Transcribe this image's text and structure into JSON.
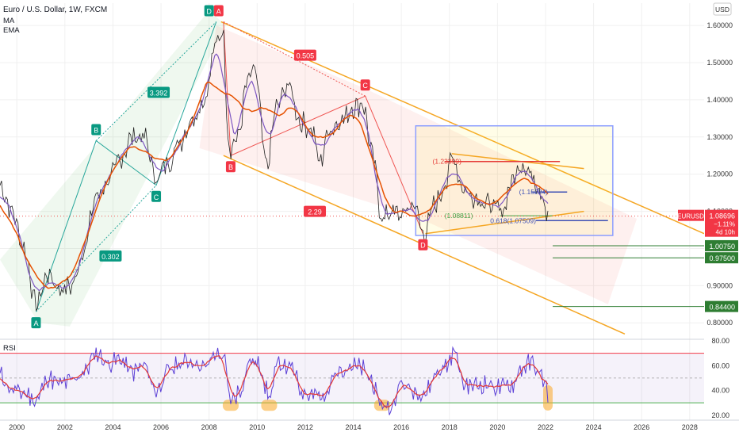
{
  "header": {
    "symbol_title": "Euro / U.S. Dollar, 1W, FXCM",
    "indicators": [
      "MA",
      "EMA"
    ],
    "currency_button": "USD"
  },
  "colors": {
    "price_line": "#212121",
    "ma": "#7e57c2",
    "ema": "#e65100",
    "channel": "#f5a623",
    "pattern_label_green": "#089981",
    "pattern_label_red": "#f23645",
    "rsi_line": "#5b3fd6",
    "rsi_ma": "#e53935",
    "rsi_upper": "#f23645",
    "rsi_lower": "#4caf50",
    "current_price_tag": "#f23645",
    "support_level": "#2e7d32",
    "highlight": "#f9a825"
  },
  "chart_data": [
    {
      "type": "line",
      "title": "Euro / U.S. Dollar, 1W, FXCM",
      "y_axis": {
        "ticks": [
          "1.60000",
          "1.50000",
          "1.40000",
          "1.30000",
          "1.20000",
          "1.10000",
          "1.00000",
          "0.90000",
          "0.80000"
        ],
        "ylim": [
          0.76,
          1.66
        ]
      },
      "x_axis": {
        "ticks": [
          "2000",
          "2002",
          "2004",
          "2006",
          "2008",
          "2010",
          "2012",
          "2014",
          "2016",
          "2018",
          "2020",
          "2022",
          "2024",
          "2026",
          "2028"
        ],
        "xlim": [
          1999.3,
          2028.6
        ]
      },
      "series": [
        {
          "name": "EURUSD",
          "x": [
            1999.3,
            1999.8,
            2000.3,
            2000.8,
            2001.3,
            2001.8,
            2002.3,
            2002.8,
            2003.3,
            2003.8,
            2004.3,
            2004.8,
            2005.3,
            2005.8,
            2006.3,
            2006.8,
            2007.3,
            2007.8,
            2008.3,
            2008.55,
            2008.85,
            2009.2,
            2009.6,
            2009.9,
            2010.4,
            2010.8,
            2011.3,
            2011.8,
            2012.3,
            2012.6,
            2013.0,
            2013.6,
            2014.0,
            2014.4,
            2014.8,
            2015.2,
            2015.6,
            2016.0,
            2016.5,
            2016.95,
            2017.4,
            2017.9,
            2018.1,
            2018.6,
            2019.0,
            2019.6,
            2020.2,
            2020.6,
            2021.0,
            2021.4,
            2021.8,
            2022.1
          ],
          "values": [
            1.17,
            1.1,
            1.0,
            0.85,
            0.93,
            0.89,
            0.9,
            1.0,
            1.14,
            1.18,
            1.24,
            1.3,
            1.3,
            1.19,
            1.23,
            1.29,
            1.35,
            1.4,
            1.55,
            1.59,
            1.27,
            1.3,
            1.45,
            1.48,
            1.22,
            1.38,
            1.44,
            1.34,
            1.32,
            1.23,
            1.32,
            1.35,
            1.38,
            1.39,
            1.25,
            1.08,
            1.1,
            1.09,
            1.12,
            1.04,
            1.12,
            1.18,
            1.25,
            1.16,
            1.14,
            1.12,
            1.1,
            1.18,
            1.23,
            1.2,
            1.16,
            1.087
          ]
        },
        {
          "name": "MA"
        },
        {
          "name": "EMA"
        }
      ],
      "current_price": {
        "symbol": "EURUSD",
        "value": "1.08696",
        "change": "−1.11%",
        "countdown": "4d 10h"
      },
      "level_tags": [
        "1.00750",
        "0.97500",
        "0.84400"
      ],
      "annotations": {
        "wave_labels": [
          "A",
          "B",
          "C",
          "D",
          "A",
          "B",
          "C",
          "D"
        ],
        "ratio_labels": [
          "3.392",
          "0.302",
          "0.505",
          "2.29"
        ],
        "price_labels": [
          "(1.23399)",
          "(1.15224)",
          "(1.08811)",
          "0.618(1.07509)"
        ]
      }
    },
    {
      "type": "line",
      "title": "RSI",
      "y_axis": {
        "ticks": [
          "80.00",
          "60.00",
          "40.00",
          "20.00"
        ],
        "ylim": [
          16,
          80
        ],
        "upper_band": 70,
        "lower_band": 30,
        "middle": 50
      },
      "series": [
        {
          "name": "RSI",
          "x": [
            1999.3,
            1999.8,
            2000.3,
            2000.8,
            2001.3,
            2001.8,
            2002.3,
            2002.8,
            2003.3,
            2003.8,
            2004.3,
            2004.8,
            2005.3,
            2005.8,
            2006.3,
            2006.8,
            2007.3,
            2007.8,
            2008.3,
            2008.6,
            2008.9,
            2009.3,
            2009.7,
            2010.1,
            2010.5,
            2010.9,
            2011.4,
            2011.9,
            2012.4,
            2012.8,
            2013.3,
            2013.8,
            2014.3,
            2014.7,
            2015.1,
            2015.5,
            2016.0,
            2016.5,
            2017.0,
            2017.5,
            2017.9,
            2018.2,
            2018.6,
            2019.1,
            2019.6,
            2020.1,
            2020.6,
            2021.0,
            2021.4,
            2021.9,
            2022.1
          ],
          "values": [
            52,
            40,
            38,
            32,
            50,
            45,
            48,
            55,
            70,
            62,
            65,
            55,
            60,
            40,
            55,
            62,
            64,
            58,
            70,
            66,
            32,
            40,
            64,
            60,
            35,
            62,
            58,
            38,
            40,
            32,
            55,
            60,
            58,
            50,
            30,
            25,
            45,
            40,
            38,
            55,
            60,
            72,
            45,
            44,
            45,
            42,
            44,
            58,
            62,
            50,
            38
          ]
        }
      ],
      "highlighted_lows": [
        2008.9,
        2010.5,
        2015.2,
        2022.1
      ]
    }
  ]
}
